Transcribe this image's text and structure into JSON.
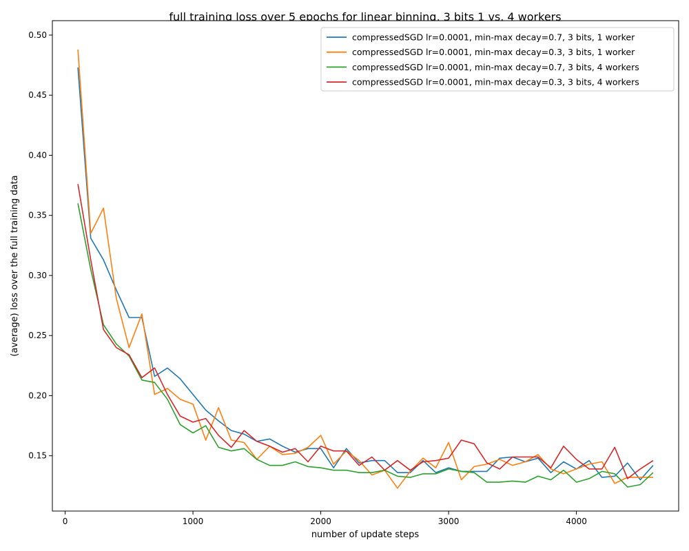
{
  "chart_data": {
    "type": "line",
    "title": "full training loss over 5 epochs for linear binning, 3 bits 1 vs. 4 workers",
    "xlabel": "number of update steps",
    "ylabel": "(average) loss over the full training data",
    "xlim": [
      -100,
      4800
    ],
    "ylim": [
      0.104,
      0.512
    ],
    "xticks": [
      0,
      1000,
      2000,
      3000,
      4000
    ],
    "xtick_labels": [
      "0",
      "1000",
      "2000",
      "3000",
      "4000"
    ],
    "yticks": [
      0.15,
      0.2,
      0.25,
      0.3,
      0.35,
      0.4,
      0.45,
      0.5
    ],
    "ytick_labels": [
      "0.15",
      "0.20",
      "0.25",
      "0.30",
      "0.35",
      "0.40",
      "0.45",
      "0.50"
    ],
    "grid": false,
    "legend_position": "top-right",
    "x": [
      100,
      200,
      300,
      400,
      500,
      600,
      700,
      800,
      900,
      1000,
      1100,
      1200,
      1300,
      1400,
      1500,
      1600,
      1700,
      1800,
      1900,
      2000,
      2100,
      2200,
      2300,
      2400,
      2500,
      2600,
      2700,
      2800,
      2900,
      3000,
      3100,
      3200,
      3300,
      3400,
      3500,
      3600,
      3700,
      3800,
      3900,
      4000,
      4100,
      4200,
      4300,
      4400,
      4500,
      4600
    ],
    "series": [
      {
        "name": "compressedSGD lr=0.0001, min-max decay=0.7, 3 bits, 1 worker",
        "color": "#1f77b4",
        "values": [
          0.473,
          0.331,
          0.313,
          0.288,
          0.265,
          0.265,
          0.216,
          0.223,
          0.214,
          0.201,
          0.188,
          0.179,
          0.171,
          0.168,
          0.162,
          0.164,
          0.158,
          0.153,
          0.156,
          0.156,
          0.14,
          0.156,
          0.144,
          0.146,
          0.146,
          0.136,
          0.136,
          0.146,
          0.136,
          0.14,
          0.137,
          0.137,
          0.137,
          0.148,
          0.149,
          0.145,
          0.148,
          0.136,
          0.145,
          0.139,
          0.146,
          0.132,
          0.133,
          0.144,
          0.13,
          0.142
        ]
      },
      {
        "name": "compressedSGD lr=0.0001, min-max decay=0.3, 3 bits, 1 worker",
        "color": "#ff7f0e",
        "values": [
          0.488,
          0.335,
          0.356,
          0.281,
          0.24,
          0.268,
          0.201,
          0.206,
          0.197,
          0.193,
          0.163,
          0.19,
          0.163,
          0.161,
          0.147,
          0.158,
          0.151,
          0.152,
          0.157,
          0.167,
          0.143,
          0.154,
          0.146,
          0.134,
          0.138,
          0.123,
          0.137,
          0.148,
          0.14,
          0.161,
          0.13,
          0.141,
          0.143,
          0.147,
          0.142,
          0.145,
          0.151,
          0.139,
          0.135,
          0.139,
          0.143,
          0.145,
          0.127,
          0.132,
          0.132,
          0.132
        ]
      },
      {
        "name": "compressedSGD lr=0.0001, min-max decay=0.7, 3 bits, 4 workers",
        "color": "#2ca02c",
        "values": [
          0.36,
          0.305,
          0.259,
          0.243,
          0.233,
          0.213,
          0.211,
          0.197,
          0.176,
          0.169,
          0.175,
          0.157,
          0.154,
          0.156,
          0.147,
          0.142,
          0.142,
          0.145,
          0.141,
          0.14,
          0.138,
          0.138,
          0.136,
          0.136,
          0.138,
          0.133,
          0.132,
          0.135,
          0.135,
          0.139,
          0.137,
          0.136,
          0.128,
          0.128,
          0.129,
          0.128,
          0.133,
          0.13,
          0.138,
          0.128,
          0.131,
          0.137,
          0.135,
          0.124,
          0.126,
          0.136
        ]
      },
      {
        "name": "compressedSGD lr=0.0001, min-max decay=0.3, 3 bits, 4 workers",
        "color": "#d62728",
        "values": [
          0.376,
          0.313,
          0.255,
          0.24,
          0.234,
          0.215,
          0.223,
          0.201,
          0.183,
          0.178,
          0.181,
          0.167,
          0.157,
          0.171,
          0.162,
          0.158,
          0.153,
          0.156,
          0.145,
          0.158,
          0.154,
          0.154,
          0.142,
          0.149,
          0.138,
          0.146,
          0.138,
          0.145,
          0.146,
          0.148,
          0.163,
          0.16,
          0.144,
          0.139,
          0.149,
          0.149,
          0.149,
          0.14,
          0.158,
          0.147,
          0.139,
          0.139,
          0.157,
          0.131,
          0.139,
          0.146
        ]
      }
    ]
  }
}
